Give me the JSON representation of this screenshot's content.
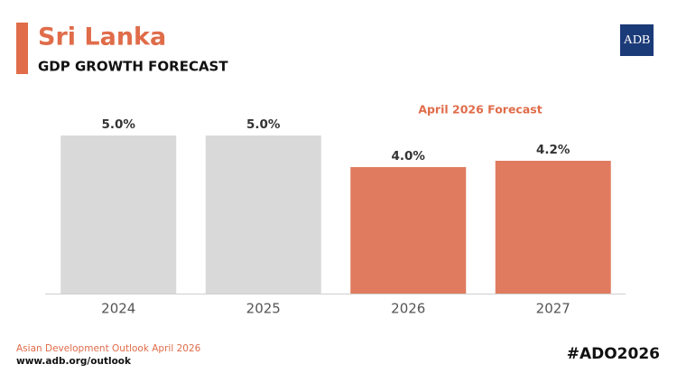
{
  "chart_data": {
    "type": "bar",
    "title": "Sri Lanka",
    "subtitle": "GDP GROWTH FORECAST",
    "annotation": "April 2026 Forecast",
    "categories": [
      "2024",
      "2025",
      "2026",
      "2027"
    ],
    "values": [
      5.0,
      5.0,
      4.0,
      4.2
    ],
    "value_labels": [
      "5.0%",
      "5.0%",
      "4.0%",
      "4.2%"
    ],
    "colors": [
      "#d9d9d9",
      "#d9d9d9",
      "#e07b5f",
      "#e07b5f"
    ],
    "logo": "ADB",
    "source": "Asian Development Outlook April 2026",
    "url": "www.adb.org/outlook",
    "hashtag": "#ADO2026"
  }
}
